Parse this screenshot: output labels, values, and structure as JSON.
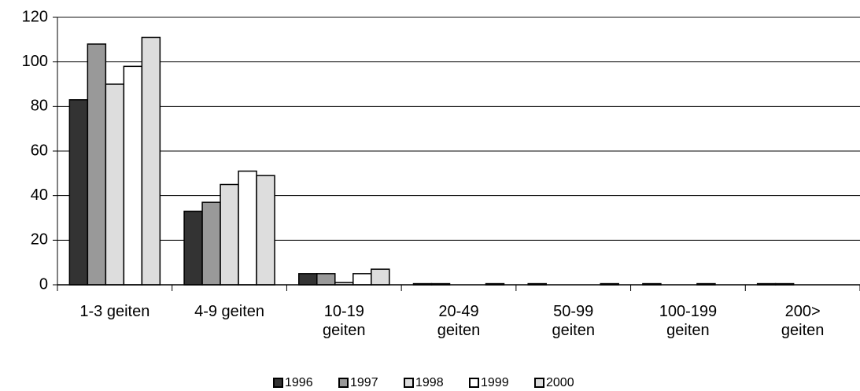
{
  "chart_data": {
    "type": "bar",
    "categories": [
      "1-3 geiten",
      "4-9 geiten",
      "10-19 geiten",
      "20-49 geiten",
      "50-99 geiten",
      "100-199 geiten",
      "200> geiten"
    ],
    "series": [
      {
        "name": "1996",
        "color": "#333333",
        "values": [
          83,
          33,
          5,
          0.5,
          0.5,
          0.5,
          0.5
        ]
      },
      {
        "name": "1997",
        "color": "#999999",
        "values": [
          108,
          37,
          5,
          0.5,
          0,
          0,
          0.5
        ]
      },
      {
        "name": "1998",
        "color": "#dddddd",
        "values": [
          90,
          45,
          1,
          0,
          0,
          0,
          0
        ]
      },
      {
        "name": "1999",
        "color": "#ffffff",
        "values": [
          98,
          51,
          5,
          0,
          0,
          0.5,
          0
        ]
      },
      {
        "name": "2000",
        "color": "#dddddd",
        "values": [
          111,
          49,
          7,
          0.5,
          0.5,
          0,
          0
        ]
      }
    ],
    "ylim": [
      0,
      120
    ],
    "yticks": [
      0,
      20,
      40,
      60,
      80,
      100,
      120
    ],
    "grid": true,
    "legend": "bottom"
  }
}
